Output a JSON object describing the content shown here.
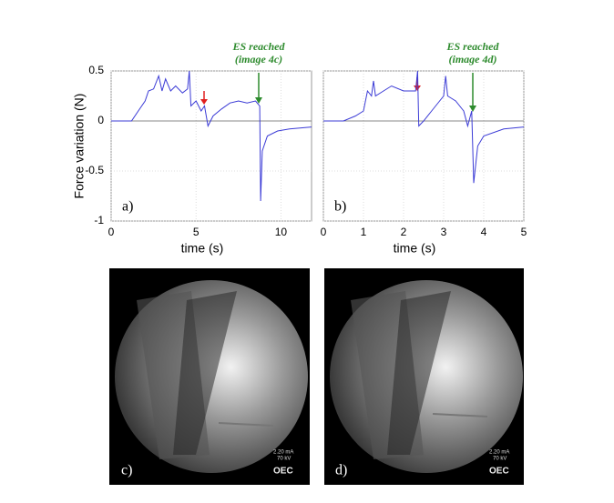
{
  "chart_data": [
    {
      "type": "line",
      "panel_label": "a)",
      "y_label": "Force variation (N)",
      "x_label": "time (s)",
      "annotation": [
        "ES reached",
        "(image 4c)"
      ],
      "xlim": [
        0,
        11.8
      ],
      "xticks": [
        0,
        5,
        10
      ],
      "ylim": [
        -1,
        0.5
      ],
      "yticks": [
        0.5,
        0,
        -0.5,
        -1
      ],
      "grid": true,
      "series": [
        {
          "color": "#3b3bd6",
          "x": [
            0,
            1.2,
            1.6,
            2.0,
            2.2,
            2.5,
            2.8,
            3.0,
            3.2,
            3.5,
            3.8,
            4.2,
            4.5,
            4.6,
            4.7,
            5.0,
            5.3,
            5.5,
            5.7,
            6.0,
            6.5,
            7.0,
            7.5,
            8.0,
            8.5,
            8.75,
            8.8,
            8.9,
            9.2,
            9.8,
            10.5,
            11.8
          ],
          "values": [
            0,
            0,
            0.1,
            0.2,
            0.3,
            0.32,
            0.45,
            0.3,
            0.42,
            0.3,
            0.35,
            0.28,
            0.32,
            0.5,
            0.15,
            0.2,
            0.1,
            0.15,
            -0.05,
            0.05,
            0.12,
            0.18,
            0.2,
            0.18,
            0.2,
            0.15,
            -0.8,
            -0.3,
            -0.15,
            -0.1,
            -0.08,
            -0.06
          ]
        }
      ]
    },
    {
      "type": "line",
      "panel_label": "b)",
      "x_label": "time (s)",
      "annotation": [
        "ES reached",
        "(image 4d)"
      ],
      "xlim": [
        0,
        5
      ],
      "xticks": [
        0,
        1,
        2,
        3,
        4,
        5
      ],
      "ylim": [
        -1,
        0.5
      ],
      "yticks": [
        0.5,
        0,
        -0.5,
        -1
      ],
      "grid": true,
      "series": [
        {
          "color": "#3b3bd6",
          "x": [
            0,
            0.5,
            0.8,
            1.0,
            1.1,
            1.2,
            1.25,
            1.3,
            1.5,
            1.7,
            2.0,
            2.3,
            2.35,
            2.38,
            2.5,
            2.7,
            2.9,
            3.0,
            3.05,
            3.1,
            3.3,
            3.5,
            3.6,
            3.7,
            3.75,
            3.85,
            4.0,
            4.5,
            5.0
          ],
          "values": [
            0,
            0,
            0.05,
            0.1,
            0.3,
            0.25,
            0.4,
            0.25,
            0.3,
            0.35,
            0.3,
            0.3,
            0.5,
            -0.05,
            0,
            0.1,
            0.2,
            0.25,
            0.45,
            0.25,
            0.2,
            0.1,
            -0.05,
            0.1,
            -0.62,
            -0.25,
            -0.15,
            -0.08,
            -0.06
          ]
        }
      ]
    }
  ],
  "images": [
    {
      "label": "c)",
      "overlay": [
        "2.20 mA",
        "70 kV"
      ],
      "logo": "OEC"
    },
    {
      "label": "d)",
      "overlay": [
        "2.20 mA",
        "70 kV"
      ],
      "logo": "OEC"
    }
  ]
}
